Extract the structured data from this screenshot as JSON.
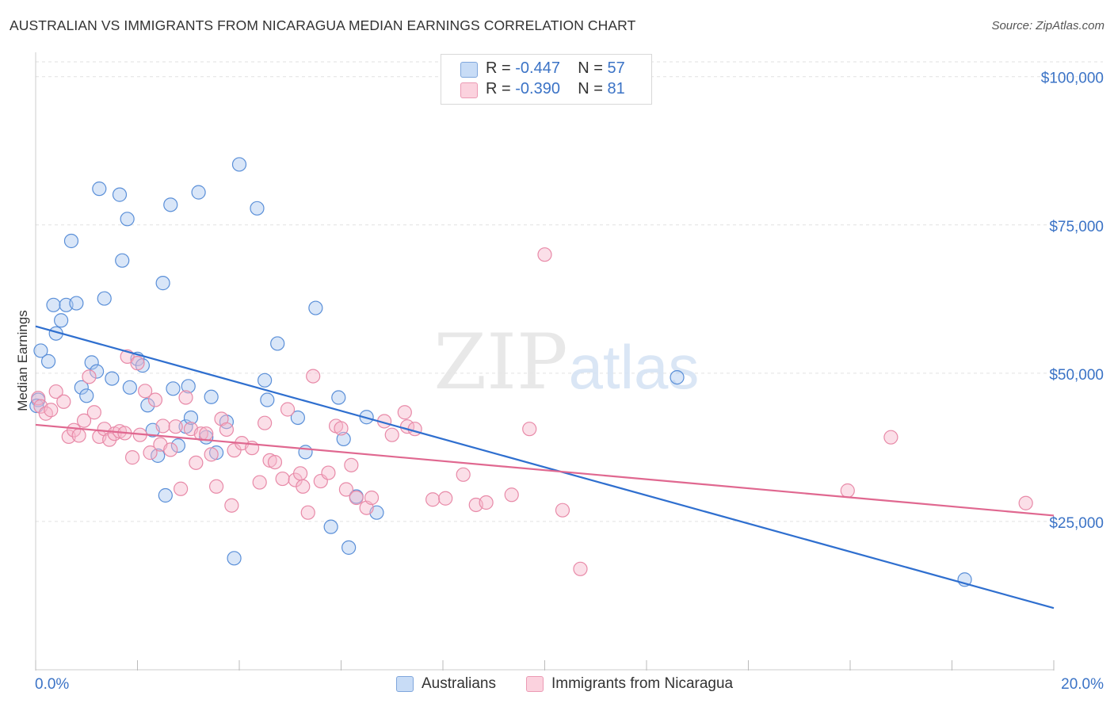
{
  "title": "AUSTRALIAN VS IMMIGRANTS FROM NICARAGUA MEDIAN EARNINGS CORRELATION CHART",
  "source": "Source: ZipAtlas.com",
  "watermark": {
    "zip": "ZIP",
    "atlas": "atlas"
  },
  "legend": {
    "rows": [
      {
        "r_label": "R = ",
        "r_value": "-0.447",
        "n_label": "N = ",
        "n_value": "57",
        "color": "#aac8f0"
      },
      {
        "r_label": "R = ",
        "r_value": "-0.390",
        "n_label": "N = ",
        "n_value": "81",
        "color": "#f7b8cc"
      }
    ]
  },
  "bottom_legend": [
    "Australians",
    "Immigrants from Nicaragua"
  ],
  "chart_data": {
    "type": "scatter",
    "ylabel": "Median Earnings",
    "xlim": [
      0,
      20
    ],
    "ylim": [
      0,
      102500
    ],
    "x_tick_labels": [
      "0.0%",
      "20.0%"
    ],
    "y_ticks": [
      {
        "value": 25000,
        "label": "$25,000"
      },
      {
        "value": 50000,
        "label": "$50,000"
      },
      {
        "value": 75000,
        "label": "$75,000"
      },
      {
        "value": 100000,
        "label": "$100,000"
      }
    ],
    "grid": true,
    "series": [
      {
        "name": "Australians",
        "color": "#5a8fd8",
        "fill": "#aac8f0",
        "trend": {
          "x0": 0,
          "y0": 57900,
          "x1": 20,
          "y1": 10400,
          "color": "#2f6fcf"
        },
        "points": [
          [
            0.05,
            45500
          ],
          [
            0.1,
            53800
          ],
          [
            0.25,
            52000
          ],
          [
            0.35,
            61500
          ],
          [
            0.4,
            56700
          ],
          [
            0.5,
            58900
          ],
          [
            0.6,
            61500
          ],
          [
            0.7,
            72300
          ],
          [
            0.8,
            61800
          ],
          [
            0.9,
            47600
          ],
          [
            1.0,
            46200
          ],
          [
            1.1,
            51800
          ],
          [
            1.2,
            50300
          ],
          [
            1.25,
            81100
          ],
          [
            1.35,
            62600
          ],
          [
            1.5,
            49100
          ],
          [
            1.65,
            80100
          ],
          [
            1.7,
            69000
          ],
          [
            1.8,
            76000
          ],
          [
            1.85,
            47600
          ],
          [
            2.0,
            52400
          ],
          [
            2.1,
            51300
          ],
          [
            2.2,
            44600
          ],
          [
            2.3,
            40400
          ],
          [
            2.4,
            36100
          ],
          [
            2.5,
            65200
          ],
          [
            2.55,
            29400
          ],
          [
            2.65,
            78400
          ],
          [
            2.7,
            47400
          ],
          [
            2.8,
            37800
          ],
          [
            2.95,
            41000
          ],
          [
            3.0,
            47800
          ],
          [
            3.05,
            42500
          ],
          [
            3.2,
            80500
          ],
          [
            3.35,
            39200
          ],
          [
            3.45,
            46000
          ],
          [
            3.55,
            36600
          ],
          [
            3.75,
            41800
          ],
          [
            3.9,
            18800
          ],
          [
            4.0,
            85200
          ],
          [
            4.35,
            77800
          ],
          [
            4.5,
            48800
          ],
          [
            4.55,
            45500
          ],
          [
            4.75,
            55000
          ],
          [
            5.15,
            42500
          ],
          [
            5.3,
            36700
          ],
          [
            5.5,
            61000
          ],
          [
            5.8,
            24100
          ],
          [
            5.95,
            45900
          ],
          [
            6.05,
            38900
          ],
          [
            6.15,
            20600
          ],
          [
            6.3,
            29200
          ],
          [
            6.5,
            42600
          ],
          [
            6.7,
            26500
          ],
          [
            12.6,
            49300
          ],
          [
            18.25,
            15200
          ],
          [
            0.02,
            44500
          ]
        ]
      },
      {
        "name": "Immigrants from Nicaragua",
        "color": "#e88aa8",
        "fill": "#f7b8cc",
        "trend": {
          "x0": 0,
          "y0": 41300,
          "x1": 20,
          "y1": 26000,
          "color": "#e06890"
        },
        "points": [
          [
            0.05,
            45800
          ],
          [
            0.1,
            44400
          ],
          [
            0.2,
            43200
          ],
          [
            0.3,
            43800
          ],
          [
            0.4,
            46900
          ],
          [
            0.55,
            45200
          ],
          [
            0.65,
            39300
          ],
          [
            0.75,
            40400
          ],
          [
            0.85,
            39500
          ],
          [
            0.95,
            42000
          ],
          [
            1.05,
            49400
          ],
          [
            1.15,
            43400
          ],
          [
            1.25,
            39300
          ],
          [
            1.35,
            40600
          ],
          [
            1.45,
            38800
          ],
          [
            1.55,
            39800
          ],
          [
            1.65,
            40200
          ],
          [
            1.75,
            39900
          ],
          [
            1.8,
            52800
          ],
          [
            1.9,
            35800
          ],
          [
            2.0,
            51700
          ],
          [
            2.05,
            39600
          ],
          [
            2.15,
            47000
          ],
          [
            2.25,
            36600
          ],
          [
            2.35,
            45500
          ],
          [
            2.45,
            38000
          ],
          [
            2.5,
            41100
          ],
          [
            2.65,
            37100
          ],
          [
            2.75,
            41000
          ],
          [
            2.85,
            30500
          ],
          [
            2.95,
            45900
          ],
          [
            3.05,
            40600
          ],
          [
            3.15,
            34900
          ],
          [
            3.25,
            39800
          ],
          [
            3.35,
            39800
          ],
          [
            3.45,
            36300
          ],
          [
            3.55,
            30900
          ],
          [
            3.65,
            42300
          ],
          [
            3.75,
            40500
          ],
          [
            3.85,
            27700
          ],
          [
            3.9,
            37000
          ],
          [
            4.05,
            38200
          ],
          [
            4.25,
            37400
          ],
          [
            4.4,
            31600
          ],
          [
            4.5,
            41600
          ],
          [
            4.6,
            35300
          ],
          [
            4.7,
            35000
          ],
          [
            4.85,
            32200
          ],
          [
            4.95,
            43900
          ],
          [
            5.1,
            32000
          ],
          [
            5.2,
            33100
          ],
          [
            5.25,
            30900
          ],
          [
            5.35,
            26500
          ],
          [
            5.45,
            49500
          ],
          [
            5.6,
            31800
          ],
          [
            5.75,
            33200
          ],
          [
            5.9,
            41100
          ],
          [
            6.0,
            40700
          ],
          [
            6.1,
            30400
          ],
          [
            6.2,
            34500
          ],
          [
            6.3,
            29000
          ],
          [
            6.5,
            27300
          ],
          [
            6.6,
            29000
          ],
          [
            6.85,
            41900
          ],
          [
            7.0,
            39600
          ],
          [
            7.25,
            43400
          ],
          [
            7.3,
            41000
          ],
          [
            7.45,
            40600
          ],
          [
            7.8,
            28700
          ],
          [
            8.05,
            28900
          ],
          [
            8.4,
            32900
          ],
          [
            8.65,
            27800
          ],
          [
            8.85,
            28200
          ],
          [
            9.35,
            29500
          ],
          [
            9.7,
            40600
          ],
          [
            10.0,
            70000
          ],
          [
            10.35,
            26900
          ],
          [
            10.7,
            17000
          ],
          [
            15.95,
            30200
          ],
          [
            16.8,
            39200
          ],
          [
            19.45,
            28100
          ]
        ]
      }
    ]
  }
}
